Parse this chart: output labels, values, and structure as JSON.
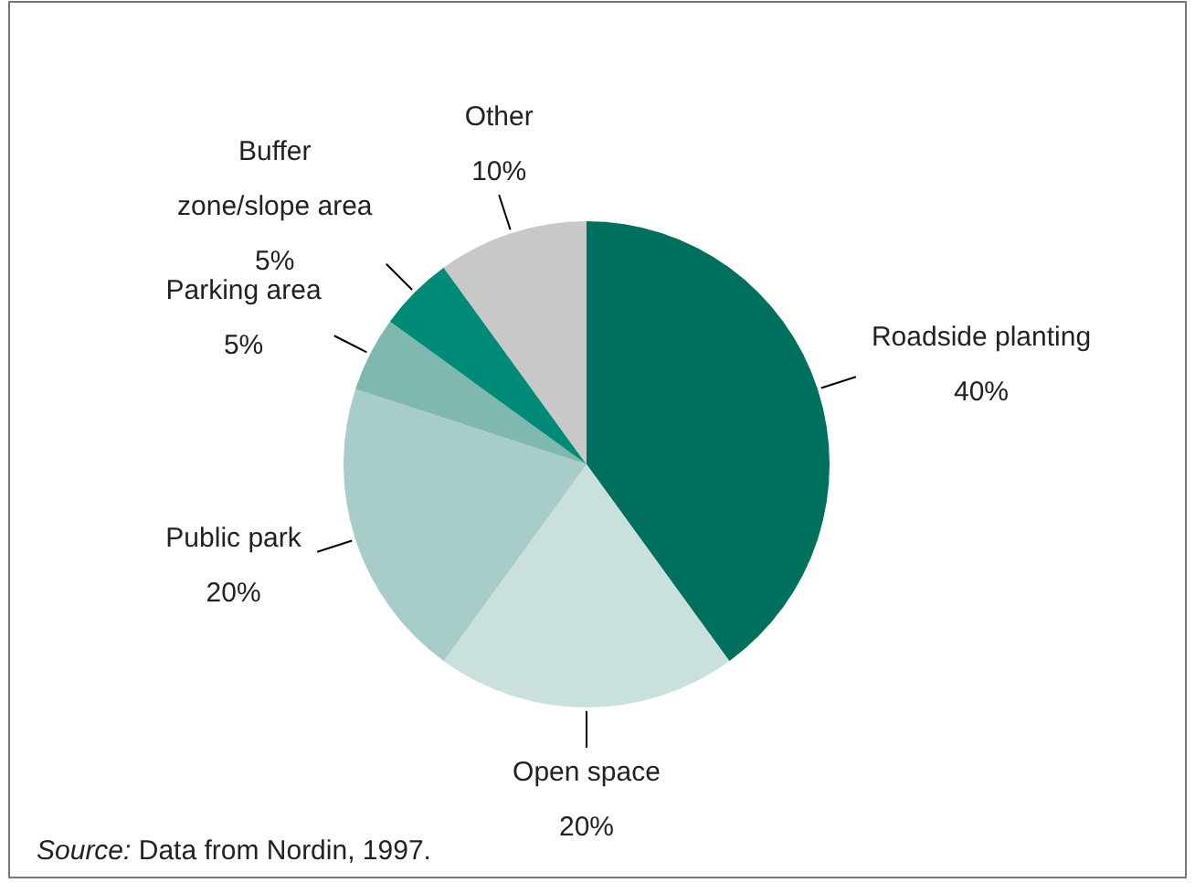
{
  "chart_data": {
    "type": "pie",
    "categories": [
      "Roadside planting",
      "Open space",
      "Public park",
      "Parking area",
      "Buffer zone/slope area",
      "Other"
    ],
    "values": [
      40,
      20,
      20,
      5,
      5,
      10
    ],
    "colors": [
      "#00705e",
      "#c9e0dc",
      "#a8cdc8",
      "#7fb8ae",
      "#008a78",
      "#c8c8c8"
    ],
    "value_labels": [
      "40%",
      "20%",
      "20%",
      "5%",
      "5%",
      "10%"
    ],
    "annotations": [
      "Source: Data from Nordin, 1997."
    ]
  }
}
